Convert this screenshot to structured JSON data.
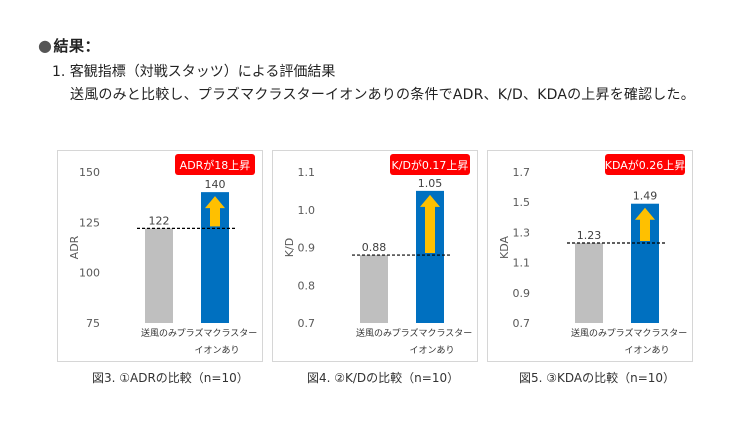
{
  "heading": {
    "bullet": "●",
    "text": "結果："
  },
  "subheading": "1. 客観指標（対戦スタッツ）による評価結果",
  "body_text": "送風のみと比較し、プラズマクラスターイオンありの条件でADR、K/D、KDAの上昇を確認した。",
  "colors": {
    "baseline_bar": "#bfbfbf",
    "plasma_bar": "#0070c0",
    "badge_bg": "#ff0000",
    "arrow": "#ffc000",
    "axis_text": "#595959"
  },
  "chart_data": [
    {
      "type": "bar",
      "ylabel": "ADR",
      "ylim": [
        75,
        150
      ],
      "yticks": [
        "150",
        "125",
        "100",
        "75"
      ],
      "categories": [
        "送風のみ",
        "プラズマクラスター\nイオンあり"
      ],
      "values": [
        122,
        140
      ],
      "value_labels": [
        "122",
        "140"
      ],
      "badge": "ADRが18上昇",
      "caption": "図3. ①ADRの比較（n=10）"
    },
    {
      "type": "bar",
      "ylabel": "K/D",
      "ylim": [
        0.7,
        1.1
      ],
      "yticks": [
        "1.1",
        "1.0",
        "0.9",
        "0.8",
        "0.7"
      ],
      "categories": [
        "送風のみ",
        "プラズマクラスター\nイオンあり"
      ],
      "values": [
        0.88,
        1.05
      ],
      "value_labels": [
        "0.88",
        "1.05"
      ],
      "badge": "K/Dが0.17上昇",
      "caption": "図4. ②K/Dの比較（n=10）"
    },
    {
      "type": "bar",
      "ylabel": "KDA",
      "ylim": [
        0.7,
        1.7
      ],
      "yticks": [
        "1.7",
        "1.5",
        "1.3",
        "1.1",
        "0.9",
        "0.7"
      ],
      "categories": [
        "送風のみ",
        "プラズマクラスター\nイオンあり"
      ],
      "values": [
        1.23,
        1.49
      ],
      "value_labels": [
        "1.23",
        "1.49"
      ],
      "badge": "KDAが0.26上昇",
      "caption": "図5. ③KDAの比較（n=10）"
    }
  ]
}
